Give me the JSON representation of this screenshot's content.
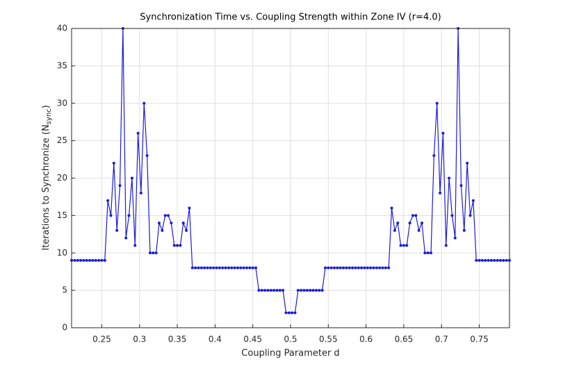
{
  "chart_data": {
    "type": "line",
    "title": "Synchronization Time vs. Coupling Strength within Zone IV (r=4.0)",
    "xlabel": "Coupling Parameter d",
    "ylabel": "Iterations to Synchronize (N",
    "ylabel_sub": "sync",
    "ylabel_end": ")",
    "color": "#1a1adb",
    "grid": true,
    "xlim": [
      0.21,
      0.79
    ],
    "ylim": [
      0,
      40
    ],
    "xticks": [
      0.25,
      0.3,
      0.35,
      0.4,
      0.45,
      0.5,
      0.55,
      0.6,
      0.65,
      0.7,
      0.75
    ],
    "yticks": [
      0,
      5,
      10,
      15,
      20,
      25,
      30,
      35,
      40
    ],
    "x": [
      0.21,
      0.214,
      0.218,
      0.222,
      0.226,
      0.23,
      0.234,
      0.238,
      0.242,
      0.246,
      0.25,
      0.254,
      0.258,
      0.262,
      0.266,
      0.27,
      0.274,
      0.278,
      0.282,
      0.286,
      0.29,
      0.294,
      0.298,
      0.302,
      0.306,
      0.31,
      0.314,
      0.318,
      0.322,
      0.326,
      0.33,
      0.334,
      0.338,
      0.342,
      0.346,
      0.35,
      0.354,
      0.358,
      0.362,
      0.366,
      0.37,
      0.374,
      0.378,
      0.382,
      0.386,
      0.39,
      0.394,
      0.398,
      0.402,
      0.406,
      0.41,
      0.414,
      0.418,
      0.422,
      0.426,
      0.43,
      0.434,
      0.438,
      0.442,
      0.446,
      0.45,
      0.454,
      0.458,
      0.462,
      0.466,
      0.47,
      0.474,
      0.478,
      0.482,
      0.486,
      0.49,
      0.494,
      0.498,
      0.502,
      0.506,
      0.51,
      0.514,
      0.518,
      0.522,
      0.526,
      0.53,
      0.534,
      0.538,
      0.542,
      0.546,
      0.55,
      0.554,
      0.558,
      0.562,
      0.566,
      0.57,
      0.574,
      0.578,
      0.582,
      0.586,
      0.59,
      0.594,
      0.598,
      0.602,
      0.606,
      0.61,
      0.614,
      0.618,
      0.622,
      0.626,
      0.63,
      0.634,
      0.638,
      0.642,
      0.646,
      0.65,
      0.654,
      0.658,
      0.662,
      0.666,
      0.67,
      0.674,
      0.678,
      0.682,
      0.686,
      0.69,
      0.694,
      0.698,
      0.702,
      0.706,
      0.71,
      0.714,
      0.718,
      0.722,
      0.726,
      0.73,
      0.734,
      0.738,
      0.742,
      0.746,
      0.75,
      0.754,
      0.758,
      0.762,
      0.766,
      0.77,
      0.774,
      0.778,
      0.782,
      0.786,
      0.79
    ],
    "values": [
      9,
      9,
      9,
      9,
      9,
      9,
      9,
      9,
      9,
      9,
      9,
      9,
      17,
      15,
      22,
      13,
      19,
      40,
      12,
      15,
      20,
      11,
      26,
      18,
      30,
      23,
      10,
      10,
      10,
      14,
      13,
      15,
      15,
      14,
      11,
      11,
      11,
      14,
      13,
      16,
      8,
      8,
      8,
      8,
      8,
      8,
      8,
      8,
      8,
      8,
      8,
      8,
      8,
      8,
      8,
      8,
      8,
      8,
      8,
      8,
      8,
      8,
      5,
      5,
      5,
      5,
      5,
      5,
      5,
      5,
      5,
      2,
      2,
      2,
      2,
      5,
      5,
      5,
      5,
      5,
      5,
      5,
      5,
      5,
      8,
      8,
      8,
      8,
      8,
      8,
      8,
      8,
      8,
      8,
      8,
      8,
      8,
      8,
      8,
      8,
      8,
      8,
      8,
      8,
      8,
      8,
      16,
      13,
      14,
      11,
      11,
      11,
      14,
      15,
      15,
      13,
      14,
      10,
      10,
      10,
      23,
      30,
      18,
      26,
      11,
      20,
      15,
      12,
      40,
      19,
      13,
      22,
      15,
      17,
      9,
      9,
      9,
      9,
      9,
      9,
      9,
      9,
      9,
      9,
      9,
      9
    ]
  }
}
